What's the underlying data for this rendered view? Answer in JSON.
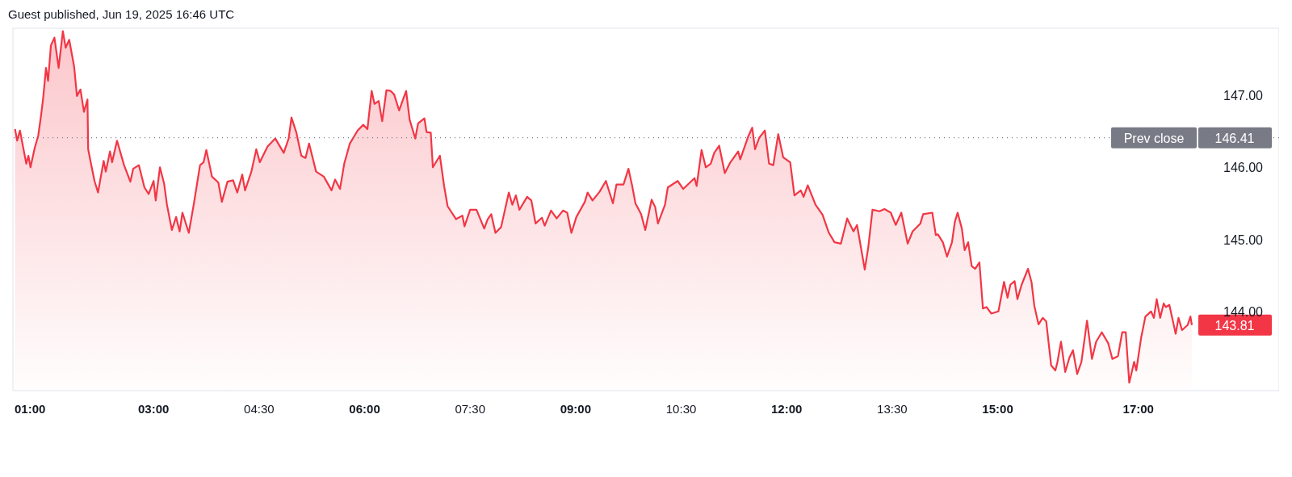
{
  "chart_data": {
    "type": "area",
    "title": "Guest published, Jun 19, 2025 16:46 UTC",
    "xlim": [
      1,
      19
    ],
    "ylim": [
      142.9,
      147.93
    ],
    "xticks": [
      {
        "value": 1,
        "label": "01:00"
      },
      {
        "value": 3,
        "label": "03:00"
      },
      {
        "value": 4.5,
        "label": "04:30"
      },
      {
        "value": 6,
        "label": "06:00"
      },
      {
        "value": 7.5,
        "label": "07:30"
      },
      {
        "value": 9,
        "label": "09:00"
      },
      {
        "value": 10.5,
        "label": "10:30"
      },
      {
        "value": 12,
        "label": "12:00"
      },
      {
        "value": 13.5,
        "label": "13:30"
      },
      {
        "value": 15,
        "label": "15:00"
      },
      {
        "value": 17,
        "label": "17:00"
      }
    ],
    "yticks": [
      {
        "value": 144,
        "label": "144.00"
      },
      {
        "value": 145,
        "label": "145.00"
      },
      {
        "value": 146,
        "label": "146.00"
      },
      {
        "value": 147,
        "label": "147.00"
      }
    ],
    "grid": false,
    "legend": false,
    "marker": "none",
    "line_style": "solid",
    "ref_lines": [
      {
        "axis": "y",
        "value": 146.41,
        "label": "Prev close",
        "color": "#787b86",
        "line_style": "dotted"
      }
    ],
    "annotations": [
      {
        "text": "146.41",
        "y": 146.41
      },
      "143.81"
    ],
    "series": [
      {
        "color": "#f23645",
        "x": [
          1.03,
          1.06,
          1.1,
          1.19,
          1.22,
          1.25,
          1.31,
          1.36,
          1.4,
          1.43,
          1.47,
          1.5,
          1.54,
          1.59,
          1.65,
          1.71,
          1.75,
          1.8,
          1.87,
          1.91,
          1.96,
          2.01,
          2.06,
          2.07,
          2.11,
          2.16,
          2.21,
          2.29,
          2.32,
          2.38,
          2.41,
          2.48,
          2.58,
          2.67,
          2.71,
          2.79,
          2.87,
          2.93,
          3.0,
          3.03,
          3.09,
          3.15,
          3.19,
          3.26,
          3.32,
          3.37,
          3.41,
          3.5,
          3.57,
          3.66,
          3.71,
          3.75,
          3.83,
          3.92,
          3.97,
          4.05,
          4.13,
          4.19,
          4.26,
          4.3,
          4.39,
          4.46,
          4.51,
          4.62,
          4.73,
          4.85,
          4.92,
          4.96,
          5.03,
          5.1,
          5.16,
          5.21,
          5.31,
          5.42,
          5.53,
          5.58,
          5.65,
          5.71,
          5.79,
          5.9,
          5.98,
          6.04,
          6.1,
          6.14,
          6.2,
          6.25,
          6.31,
          6.37,
          6.42,
          6.49,
          6.59,
          6.64,
          6.72,
          6.76,
          6.85,
          6.88,
          6.94,
          6.97,
          7.07,
          7.13,
          7.18,
          7.3,
          7.39,
          7.42,
          7.5,
          7.59,
          7.7,
          7.75,
          7.8,
          7.86,
          7.94,
          8.05,
          8.1,
          8.15,
          8.2,
          8.31,
          8.37,
          8.43,
          8.52,
          8.56,
          8.65,
          8.73,
          8.82,
          8.88,
          8.94,
          9.01,
          9.13,
          9.17,
          9.24,
          9.34,
          9.43,
          9.53,
          9.58,
          9.68,
          9.75,
          9.8,
          9.85,
          9.93,
          9.99,
          10.08,
          10.13,
          10.17,
          10.27,
          10.31,
          10.45,
          10.53,
          10.69,
          10.72,
          10.79,
          10.85,
          10.92,
          10.97,
          11.04,
          11.12,
          11.2,
          11.31,
          11.34,
          11.45,
          11.51,
          11.55,
          11.61,
          11.69,
          11.75,
          11.81,
          11.88,
          11.95,
          12.05,
          12.11,
          12.2,
          12.24,
          12.3,
          12.41,
          12.51,
          12.6,
          12.68,
          12.77,
          12.86,
          12.95,
          13.0,
          13.11,
          13.16,
          13.22,
          13.32,
          13.39,
          13.48,
          13.55,
          13.63,
          13.72,
          13.79,
          13.9,
          13.94,
          14.07,
          14.12,
          14.15,
          14.22,
          14.28,
          14.35,
          14.39,
          14.43,
          14.49,
          14.53,
          14.58,
          14.63,
          14.68,
          14.74,
          14.79,
          14.84,
          14.91,
          15.01,
          15.09,
          15.14,
          15.18,
          15.24,
          15.28,
          15.34,
          15.43,
          15.48,
          15.52,
          15.58,
          15.64,
          15.69,
          15.76,
          15.82,
          15.85,
          15.9,
          15.96,
          16.02,
          16.07,
          16.13,
          16.19,
          16.27,
          16.34,
          16.4,
          16.48,
          16.57,
          16.63,
          16.71,
          16.77,
          16.82,
          16.87,
          16.94,
          16.97,
          17.04,
          17.1,
          17.18,
          17.22,
          17.26,
          17.31,
          17.36,
          17.39,
          17.44,
          17.53,
          17.57,
          17.62,
          17.7,
          17.74,
          17.76
        ],
        "values": [
          146.53,
          146.37,
          146.51,
          146.05,
          146.16,
          146.0,
          146.27,
          146.44,
          146.72,
          146.96,
          147.38,
          147.2,
          147.69,
          147.8,
          147.38,
          147.89,
          147.66,
          147.77,
          147.4,
          146.99,
          147.08,
          146.77,
          146.94,
          146.25,
          146.05,
          145.81,
          145.65,
          146.09,
          145.94,
          146.22,
          146.07,
          146.37,
          146.03,
          145.8,
          145.98,
          146.03,
          145.72,
          145.63,
          145.81,
          145.54,
          146.0,
          145.77,
          145.48,
          145.13,
          145.31,
          145.11,
          145.37,
          145.09,
          145.48,
          146.03,
          146.07,
          146.24,
          145.87,
          145.79,
          145.52,
          145.8,
          145.82,
          145.65,
          145.9,
          145.68,
          145.94,
          146.25,
          146.07,
          146.29,
          146.4,
          146.2,
          146.4,
          146.69,
          146.48,
          146.16,
          146.13,
          146.33,
          145.94,
          145.87,
          145.68,
          145.83,
          145.7,
          146.05,
          146.33,
          146.51,
          146.59,
          146.53,
          147.06,
          146.88,
          146.92,
          146.64,
          147.07,
          147.06,
          147.01,
          146.79,
          147.06,
          146.66,
          146.4,
          146.61,
          146.68,
          146.49,
          146.48,
          146.0,
          146.16,
          145.74,
          145.46,
          145.28,
          145.33,
          145.18,
          145.41,
          145.41,
          145.15,
          145.28,
          145.35,
          145.09,
          145.17,
          145.65,
          145.48,
          145.61,
          145.41,
          145.59,
          145.54,
          145.22,
          145.3,
          145.19,
          145.4,
          145.29,
          145.4,
          145.37,
          145.09,
          145.31,
          145.52,
          145.65,
          145.54,
          145.66,
          145.81,
          145.5,
          145.76,
          145.76,
          145.98,
          145.76,
          145.5,
          145.35,
          145.13,
          145.55,
          145.45,
          145.22,
          145.48,
          145.72,
          145.81,
          145.7,
          145.85,
          145.74,
          146.24,
          146.0,
          146.05,
          146.2,
          146.3,
          145.92,
          146.07,
          146.22,
          146.11,
          146.42,
          146.55,
          146.25,
          146.41,
          146.51,
          146.05,
          146.03,
          146.46,
          146.14,
          146.07,
          145.61,
          145.68,
          145.59,
          145.75,
          145.48,
          145.34,
          145.09,
          144.96,
          144.94,
          145.29,
          145.11,
          145.2,
          144.58,
          144.89,
          145.41,
          145.39,
          145.42,
          145.37,
          145.2,
          145.37,
          144.94,
          145.11,
          145.22,
          145.35,
          145.37,
          145.06,
          145.07,
          144.96,
          144.76,
          144.96,
          145.24,
          145.37,
          145.15,
          144.85,
          144.96,
          144.63,
          144.59,
          144.68,
          144.04,
          144.06,
          143.97,
          144.0,
          144.41,
          144.19,
          144.37,
          144.42,
          144.17,
          144.37,
          144.59,
          144.41,
          144.08,
          143.82,
          143.91,
          143.86,
          143.25,
          143.18,
          143.3,
          143.58,
          143.16,
          143.36,
          143.46,
          143.13,
          143.3,
          143.87,
          143.34,
          143.58,
          143.71,
          143.56,
          143.34,
          143.38,
          143.71,
          143.71,
          143.01,
          143.3,
          143.18,
          143.64,
          143.93,
          144.0,
          143.91,
          144.17,
          143.91,
          144.11,
          144.06,
          144.09,
          143.69,
          143.91,
          143.74,
          143.81,
          143.93,
          143.81
        ]
      }
    ]
  }
}
